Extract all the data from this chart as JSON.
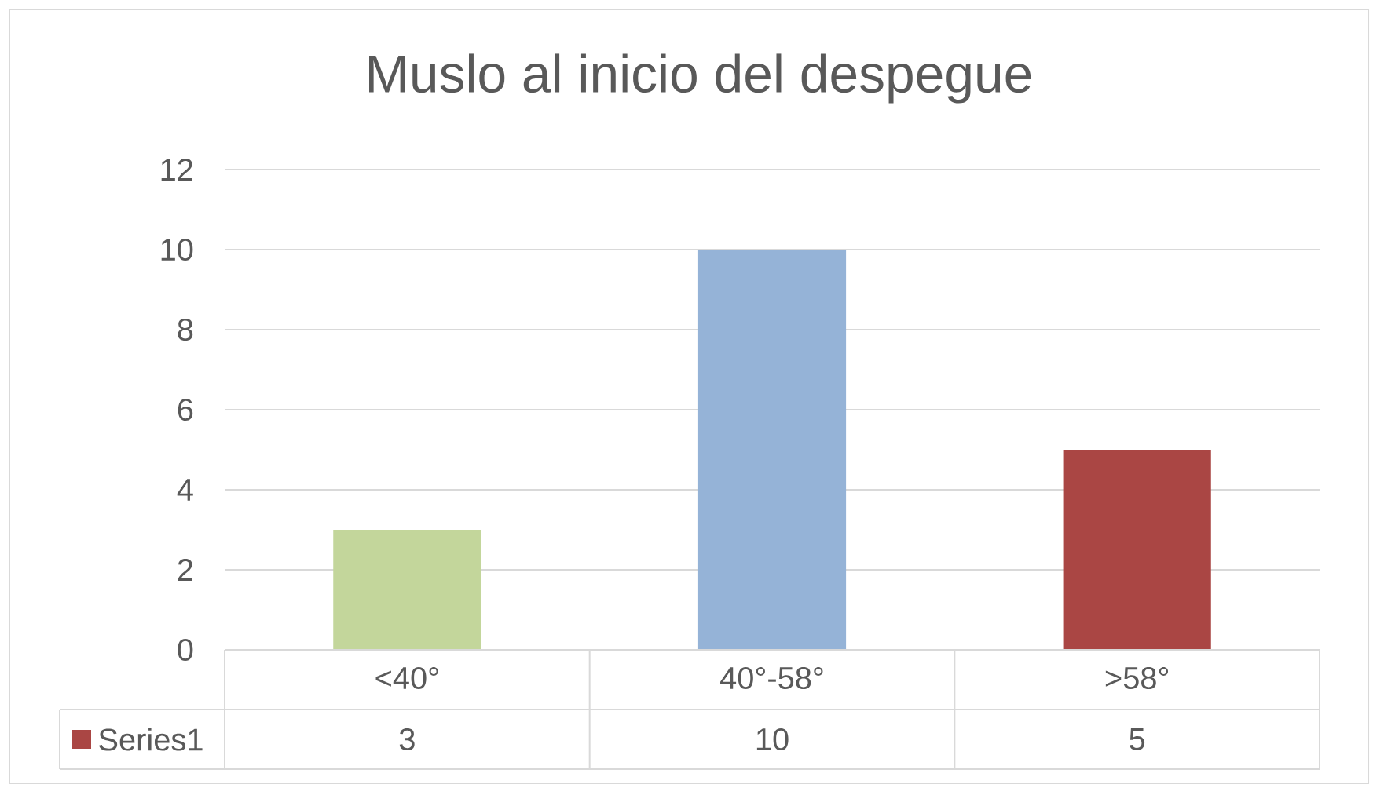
{
  "chart_data": {
    "type": "bar",
    "title": "Muslo al inicio del despegue",
    "categories": [
      "<40°",
      "40°-58°",
      ">58°"
    ],
    "series": [
      {
        "name": "Series1",
        "color": "#aa4644",
        "colors": [
          "#c3d69b",
          "#95b3d7",
          "#aa4644"
        ],
        "values": [
          3,
          10,
          5
        ]
      }
    ],
    "ylim": [
      0,
      12
    ],
    "yticks": [
      0,
      2,
      4,
      6,
      8,
      10,
      12
    ],
    "grid": "y",
    "legend": "bottom",
    "data_labels": true
  }
}
